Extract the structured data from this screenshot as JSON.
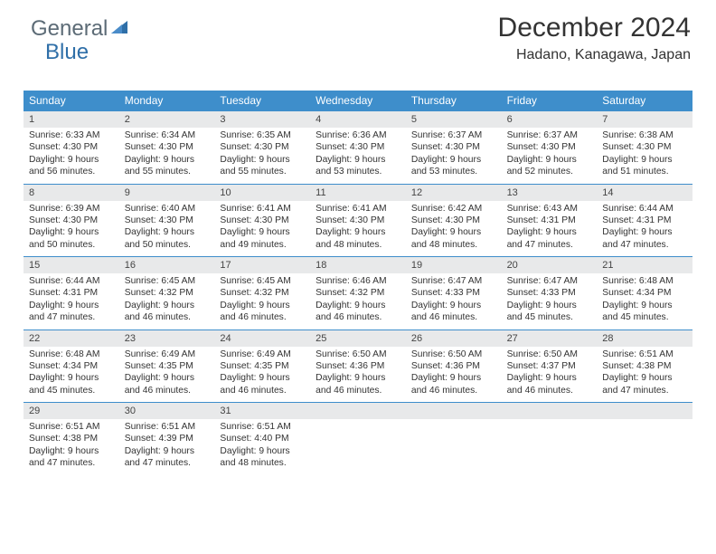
{
  "logo": {
    "text1": "General",
    "text2": "Blue"
  },
  "title": "December 2024",
  "subtitle": "Hadano, Kanagawa, Japan",
  "colors": {
    "header_bg": "#3e8ecb",
    "daynum_bg": "#e8e9ea",
    "week_border": "#3e8ecb",
    "logo_text": "#5c6b76",
    "logo_sail": "#2f6fa8"
  },
  "day_names": [
    "Sunday",
    "Monday",
    "Tuesday",
    "Wednesday",
    "Thursday",
    "Friday",
    "Saturday"
  ],
  "weeks": [
    [
      {
        "n": "1",
        "sr": "6:33 AM",
        "ss": "4:30 PM",
        "dl": "9 hours and 56 minutes."
      },
      {
        "n": "2",
        "sr": "6:34 AM",
        "ss": "4:30 PM",
        "dl": "9 hours and 55 minutes."
      },
      {
        "n": "3",
        "sr": "6:35 AM",
        "ss": "4:30 PM",
        "dl": "9 hours and 55 minutes."
      },
      {
        "n": "4",
        "sr": "6:36 AM",
        "ss": "4:30 PM",
        "dl": "9 hours and 53 minutes."
      },
      {
        "n": "5",
        "sr": "6:37 AM",
        "ss": "4:30 PM",
        "dl": "9 hours and 53 minutes."
      },
      {
        "n": "6",
        "sr": "6:37 AM",
        "ss": "4:30 PM",
        "dl": "9 hours and 52 minutes."
      },
      {
        "n": "7",
        "sr": "6:38 AM",
        "ss": "4:30 PM",
        "dl": "9 hours and 51 minutes."
      }
    ],
    [
      {
        "n": "8",
        "sr": "6:39 AM",
        "ss": "4:30 PM",
        "dl": "9 hours and 50 minutes."
      },
      {
        "n": "9",
        "sr": "6:40 AM",
        "ss": "4:30 PM",
        "dl": "9 hours and 50 minutes."
      },
      {
        "n": "10",
        "sr": "6:41 AM",
        "ss": "4:30 PM",
        "dl": "9 hours and 49 minutes."
      },
      {
        "n": "11",
        "sr": "6:41 AM",
        "ss": "4:30 PM",
        "dl": "9 hours and 48 minutes."
      },
      {
        "n": "12",
        "sr": "6:42 AM",
        "ss": "4:30 PM",
        "dl": "9 hours and 48 minutes."
      },
      {
        "n": "13",
        "sr": "6:43 AM",
        "ss": "4:31 PM",
        "dl": "9 hours and 47 minutes."
      },
      {
        "n": "14",
        "sr": "6:44 AM",
        "ss": "4:31 PM",
        "dl": "9 hours and 47 minutes."
      }
    ],
    [
      {
        "n": "15",
        "sr": "6:44 AM",
        "ss": "4:31 PM",
        "dl": "9 hours and 47 minutes."
      },
      {
        "n": "16",
        "sr": "6:45 AM",
        "ss": "4:32 PM",
        "dl": "9 hours and 46 minutes."
      },
      {
        "n": "17",
        "sr": "6:45 AM",
        "ss": "4:32 PM",
        "dl": "9 hours and 46 minutes."
      },
      {
        "n": "18",
        "sr": "6:46 AM",
        "ss": "4:32 PM",
        "dl": "9 hours and 46 minutes."
      },
      {
        "n": "19",
        "sr": "6:47 AM",
        "ss": "4:33 PM",
        "dl": "9 hours and 46 minutes."
      },
      {
        "n": "20",
        "sr": "6:47 AM",
        "ss": "4:33 PM",
        "dl": "9 hours and 45 minutes."
      },
      {
        "n": "21",
        "sr": "6:48 AM",
        "ss": "4:34 PM",
        "dl": "9 hours and 45 minutes."
      }
    ],
    [
      {
        "n": "22",
        "sr": "6:48 AM",
        "ss": "4:34 PM",
        "dl": "9 hours and 45 minutes."
      },
      {
        "n": "23",
        "sr": "6:49 AM",
        "ss": "4:35 PM",
        "dl": "9 hours and 46 minutes."
      },
      {
        "n": "24",
        "sr": "6:49 AM",
        "ss": "4:35 PM",
        "dl": "9 hours and 46 minutes."
      },
      {
        "n": "25",
        "sr": "6:50 AM",
        "ss": "4:36 PM",
        "dl": "9 hours and 46 minutes."
      },
      {
        "n": "26",
        "sr": "6:50 AM",
        "ss": "4:36 PM",
        "dl": "9 hours and 46 minutes."
      },
      {
        "n": "27",
        "sr": "6:50 AM",
        "ss": "4:37 PM",
        "dl": "9 hours and 46 minutes."
      },
      {
        "n": "28",
        "sr": "6:51 AM",
        "ss": "4:38 PM",
        "dl": "9 hours and 47 minutes."
      }
    ],
    [
      {
        "n": "29",
        "sr": "6:51 AM",
        "ss": "4:38 PM",
        "dl": "9 hours and 47 minutes."
      },
      {
        "n": "30",
        "sr": "6:51 AM",
        "ss": "4:39 PM",
        "dl": "9 hours and 47 minutes."
      },
      {
        "n": "31",
        "sr": "6:51 AM",
        "ss": "4:40 PM",
        "dl": "9 hours and 48 minutes."
      },
      {
        "empty": true
      },
      {
        "empty": true
      },
      {
        "empty": true
      },
      {
        "empty": true
      }
    ]
  ],
  "labels": {
    "sunrise": "Sunrise:",
    "sunset": "Sunset:",
    "daylight": "Daylight:"
  }
}
